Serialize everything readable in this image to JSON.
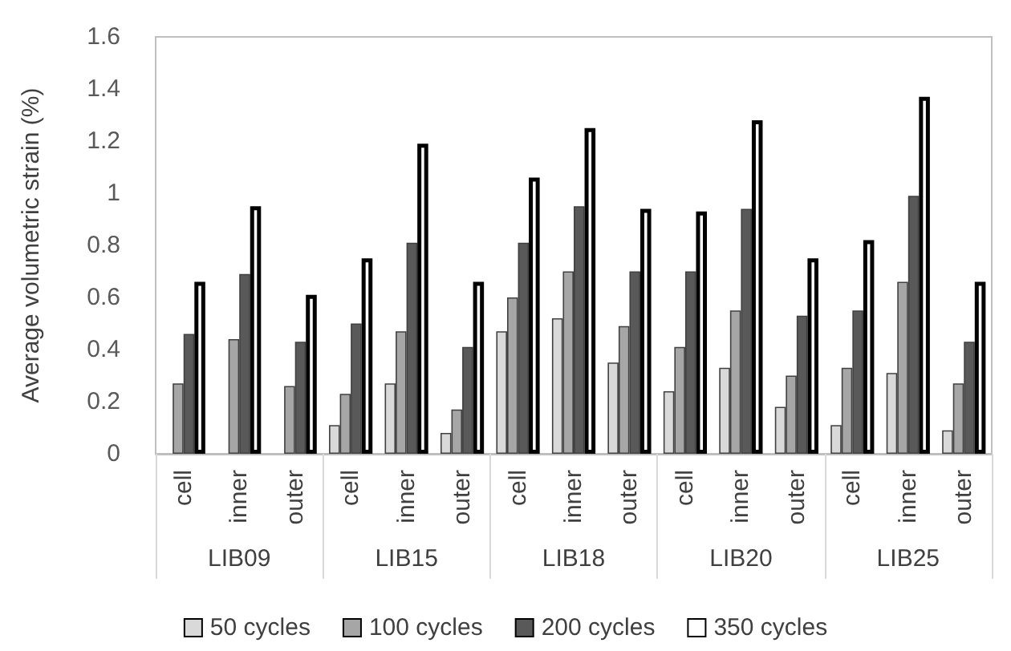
{
  "chart_data": {
    "type": "bar",
    "ylabel": "Average volumetric strain (%)",
    "categories": [
      "cell",
      "inner",
      "outer",
      "cell",
      "inner",
      "outer",
      "cell",
      "inner",
      "outer",
      "cell",
      "inner",
      "outer",
      "cell",
      "inner",
      "outer"
    ],
    "annotations": [
      "LIB09",
      "LIB15",
      "LIB18",
      "LIB20",
      "LIB25"
    ],
    "series": [
      {
        "name": "50 cycles",
        "color": "#d9d9d9",
        "values": [
          null,
          null,
          null,
          0.11,
          0.27,
          0.08,
          0.47,
          0.52,
          0.35,
          0.24,
          0.33,
          0.18,
          0.11,
          0.31,
          0.09
        ]
      },
      {
        "name": "100 cycles",
        "color": "#a6a6a6",
        "values": [
          0.27,
          0.44,
          0.26,
          0.23,
          0.47,
          0.17,
          0.6,
          0.7,
          0.49,
          0.41,
          0.55,
          0.3,
          0.33,
          0.66,
          0.27
        ]
      },
      {
        "name": "200 cycles",
        "color": "#595959",
        "values": [
          0.46,
          0.69,
          0.43,
          0.5,
          0.81,
          0.41,
          0.81,
          0.95,
          0.7,
          0.7,
          0.94,
          0.53,
          0.55,
          0.99,
          0.43
        ]
      },
      {
        "name": "350 cycles",
        "color": "#ffffff",
        "values": [
          0.66,
          0.95,
          0.61,
          0.75,
          1.19,
          0.66,
          1.06,
          1.25,
          0.94,
          0.93,
          1.28,
          0.75,
          0.82,
          1.37,
          0.66
        ]
      }
    ],
    "ylim": [
      0,
      1.6
    ],
    "yticks": [
      0,
      0.2,
      0.4,
      0.6,
      0.8,
      1,
      1.2,
      1.4,
      1.6
    ],
    "grid": false,
    "legend": "bottom"
  }
}
